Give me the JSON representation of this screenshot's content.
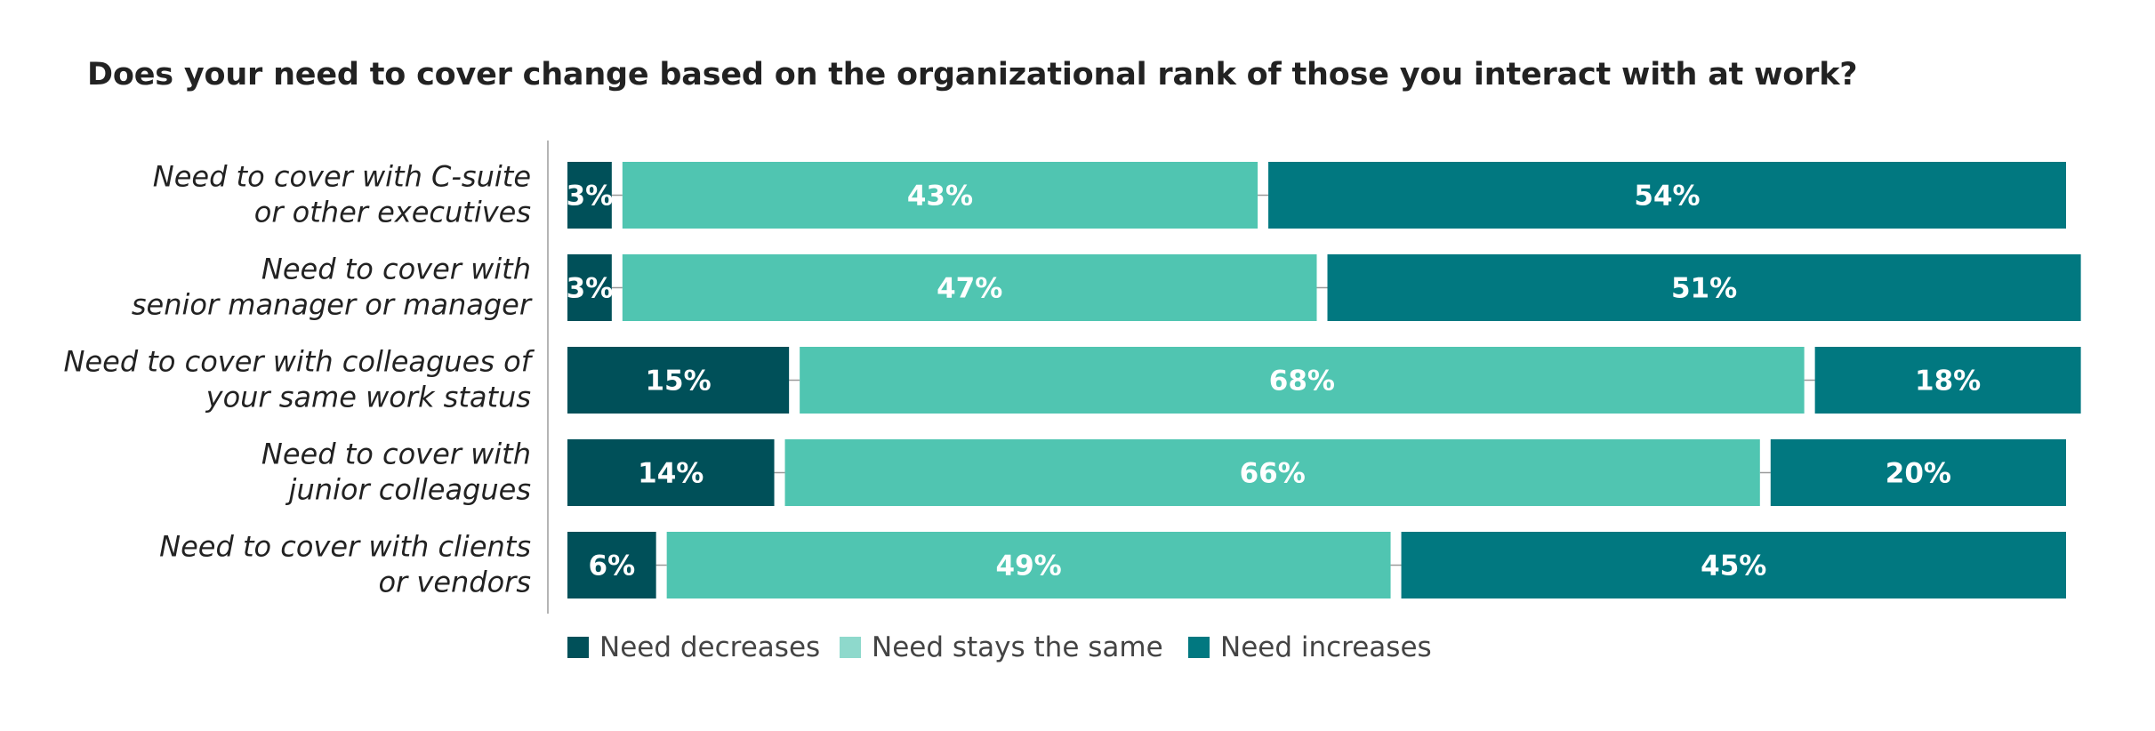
{
  "chart_data": {
    "type": "bar",
    "orientation": "horizontal",
    "stacked": true,
    "title": "Does your need to cover change based on the organizational rank of those you interact with at work?",
    "categories": [
      [
        "Need to cover with C-suite",
        "or other executives"
      ],
      [
        "Need to cover with",
        "senior manager or manager"
      ],
      [
        "Need to cover with colleagues of",
        "your same work status"
      ],
      [
        "Need to cover with",
        "junior colleagues"
      ],
      [
        "Need to cover with clients",
        "or vendors"
      ]
    ],
    "series": [
      {
        "name": "Need decreases",
        "color": "#005059",
        "values": [
          3,
          3,
          15,
          14,
          6
        ],
        "labels": [
          "3%",
          "3%",
          "15%",
          "14%",
          "6%"
        ]
      },
      {
        "name": "Need stays the same",
        "color": "#50c5b1",
        "values": [
          43,
          47,
          68,
          66,
          49
        ],
        "labels": [
          "43%",
          "47%",
          "68%",
          "66%",
          "49%"
        ]
      },
      {
        "name": "Need increases",
        "color": "#017880",
        "values": [
          54,
          51,
          18,
          20,
          45
        ],
        "labels": [
          "54%",
          "51%",
          "18%",
          "20%",
          "45%"
        ]
      }
    ],
    "xlim": [
      0,
      100
    ],
    "legend_position": "bottom",
    "grid": false
  }
}
